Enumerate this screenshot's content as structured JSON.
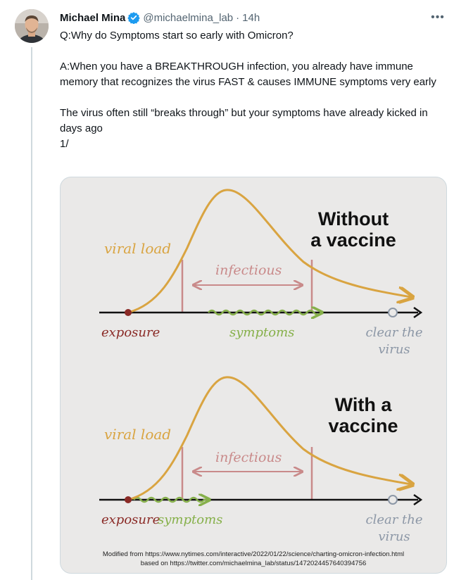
{
  "tweet": {
    "author_name": "Michael Mina",
    "handle": "@michaelmina_lab",
    "separator": "·",
    "time": "14h",
    "verified": true,
    "more_label": "•••",
    "text": {
      "line1": "Q:Why do Symptoms start so early with Omicron?",
      "line2": "A:When you have a BREAKTHROUGH infection, you already have immune memory that recognizes the virus FAST & causes IMMUNE symptoms very early",
      "line3": "The virus often still “breaks through” but your symptoms have already kicked in days ago",
      "line4": "1/"
    }
  },
  "figure": {
    "panel_top": {
      "title_line1": "Without",
      "title_line2": "a vaccine",
      "viral_load_label": "viral load",
      "infectious_label": "infectious",
      "exposure_label": "exposure",
      "symptoms_label": "symptoms",
      "clear_line1": "clear the",
      "clear_line2": "virus"
    },
    "panel_bottom": {
      "title_line1": "With a",
      "title_line2": "vaccine",
      "viral_load_label": "viral load",
      "infectious_label": "infectious",
      "exposure_label": "exposure",
      "symptoms_label": "symptoms",
      "clear_line1": "clear the",
      "clear_line2": "virus"
    },
    "credit_line1": "Modified from https://www.nytimes.com/interactive/2022/01/22/science/charting-omicron-infection.html",
    "credit_line2": "based on https://twitter.com/michaelmina_lab/status/1472024457640394756"
  },
  "colors": {
    "curve": "#d9a441",
    "infectious": "#c98a8a",
    "symptoms": "#86b04a",
    "exposure_dot": "#8a2a26",
    "exposure_text": "#8a2a26",
    "clear_text": "#8c97a6",
    "verified": "#1d9bf0"
  }
}
